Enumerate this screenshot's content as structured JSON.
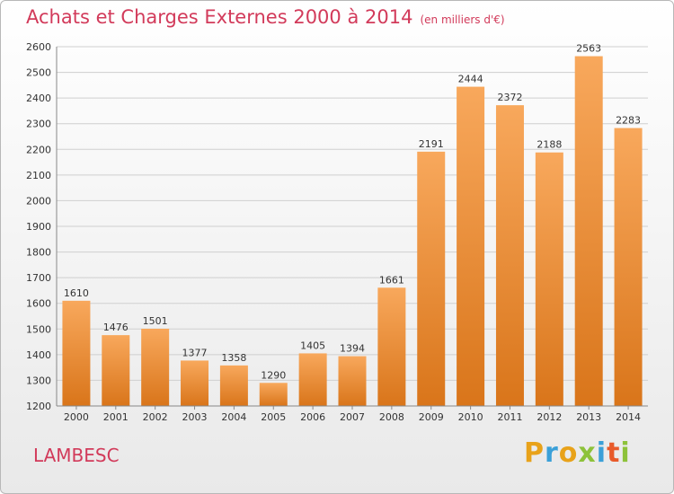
{
  "header": {
    "title": "Achats et Charges Externes 2000 à 2014",
    "subtitle": "(en milliers d'€)"
  },
  "footer": {
    "commune": "LAMBESC",
    "logo": "Proxiti"
  },
  "colors": {
    "title": "#d23a5a",
    "bar_light": "#f8a85c",
    "bar_dark": "#dd7a1e",
    "grid": "#cfcfcf"
  },
  "chart_data": {
    "type": "bar",
    "title": "Achats et Charges Externes 2000 à 2014",
    "subtitle": "(en milliers d'€)",
    "xlabel": "",
    "ylabel": "",
    "categories": [
      "2000",
      "2001",
      "2002",
      "2003",
      "2004",
      "2005",
      "2006",
      "2007",
      "2008",
      "2009",
      "2010",
      "2011",
      "2012",
      "2013",
      "2014"
    ],
    "values": [
      1610,
      1476,
      1501,
      1377,
      1358,
      1290,
      1405,
      1394,
      1661,
      2191,
      2444,
      2372,
      2188,
      2563,
      2283
    ],
    "ylim": [
      1200,
      2600
    ],
    "yticks": [
      1200,
      1300,
      1400,
      1500,
      1600,
      1700,
      1800,
      1900,
      2000,
      2100,
      2200,
      2300,
      2400,
      2500,
      2600
    ],
    "grid": true,
    "legend": "none"
  }
}
